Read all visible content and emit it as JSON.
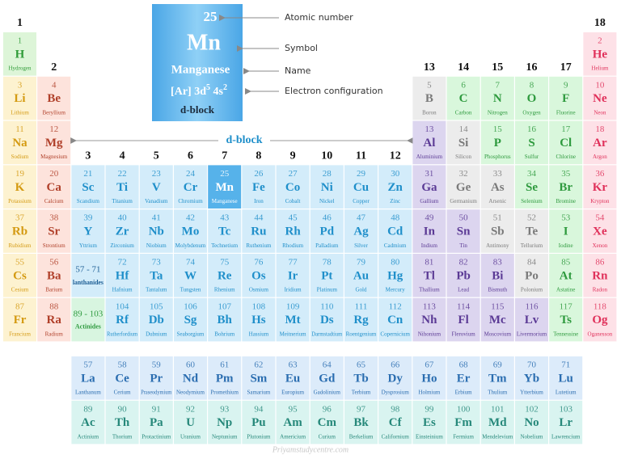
{
  "legend": {
    "number": 25,
    "symbol": "Mn",
    "name": "Manganese",
    "configuration": [
      "[Ar] 3d",
      "5",
      " 4s",
      "2"
    ],
    "block": "d-block",
    "annotations": {
      "number": "Atomic number",
      "symbol": "Symbol",
      "name": "Name",
      "configuration": "Electron configuration"
    }
  },
  "d_block_label": "d-block",
  "groups": [
    1,
    2,
    3,
    4,
    5,
    6,
    7,
    8,
    9,
    10,
    11,
    12,
    13,
    14,
    15,
    16,
    17,
    18
  ],
  "table": {
    "rows": [
      [
        {
          "number": 1,
          "symbol": "H",
          "name": "Hydrogen",
          "fill": "#ddf5d8",
          "color": "#2f9b38"
        },
        null,
        null,
        null,
        null,
        null,
        null,
        null,
        null,
        null,
        null,
        null,
        null,
        null,
        null,
        null,
        null,
        {
          "number": 2,
          "symbol": "He",
          "name": "Helium",
          "fill": "#fde1e7",
          "color": "#e0305a"
        }
      ],
      [
        {
          "number": 3,
          "symbol": "Li",
          "name": "Lithium",
          "fill": "#fdf2d0",
          "color": "#d49a12"
        },
        {
          "number": 4,
          "symbol": "Be",
          "name": "Beryllium",
          "fill": "#fde3dc",
          "color": "#b0402a"
        },
        null,
        null,
        null,
        null,
        null,
        null,
        null,
        null,
        null,
        null,
        {
          "number": 5,
          "symbol": "B",
          "name": "Boron",
          "fill": "#ececec",
          "color": "#7a7a7a"
        },
        {
          "number": 6,
          "symbol": "C",
          "name": "Carbon",
          "fill": "#d9f7dc",
          "color": "#2e9a3e"
        },
        {
          "number": 7,
          "symbol": "N",
          "name": "Nitrogen",
          "fill": "#d9f7dc",
          "color": "#2e9a3e"
        },
        {
          "number": 8,
          "symbol": "O",
          "name": "Oxygen",
          "fill": "#d9f7dc",
          "color": "#2e9a3e"
        },
        {
          "number": 9,
          "symbol": "F",
          "name": "Fluorine",
          "fill": "#d9f7dc",
          "color": "#2e9a3e"
        },
        {
          "number": 10,
          "symbol": "Ne",
          "name": "Neon",
          "fill": "#fde1e7",
          "color": "#e0305a"
        }
      ],
      [
        {
          "number": 11,
          "symbol": "Na",
          "name": "Sodium",
          "fill": "#fdf2d0",
          "color": "#d49a12"
        },
        {
          "number": 12,
          "symbol": "Mg",
          "name": "Magnesium",
          "fill": "#fde3dc",
          "color": "#b0402a"
        },
        null,
        null,
        null,
        null,
        null,
        null,
        null,
        null,
        null,
        null,
        {
          "number": 13,
          "symbol": "Al",
          "name": "Aluminium",
          "fill": "#dcd5ef",
          "color": "#5b3a95"
        },
        {
          "number": 14,
          "symbol": "Si",
          "name": "Silicon",
          "fill": "#ececec",
          "color": "#7a7a7a"
        },
        {
          "number": 15,
          "symbol": "P",
          "name": "Phosphorus",
          "fill": "#d9f7dc",
          "color": "#2e9a3e"
        },
        {
          "number": 16,
          "symbol": "S",
          "name": "Sulfur",
          "fill": "#d9f7dc",
          "color": "#2e9a3e"
        },
        {
          "number": 17,
          "symbol": "Cl",
          "name": "Chlorine",
          "fill": "#d9f7dc",
          "color": "#2e9a3e"
        },
        {
          "number": 18,
          "symbol": "Ar",
          "name": "Argon",
          "fill": "#fde1e7",
          "color": "#e0305a"
        }
      ],
      [
        {
          "number": 19,
          "symbol": "K",
          "name": "Potassium",
          "fill": "#fdf2d0",
          "color": "#d49a12"
        },
        {
          "number": 20,
          "symbol": "Ca",
          "name": "Calcium",
          "fill": "#fde3dc",
          "color": "#b0402a"
        },
        {
          "number": 21,
          "symbol": "Sc",
          "name": "Scandium",
          "fill": "#d3ecfa",
          "color": "#1f8fca"
        },
        {
          "number": 22,
          "symbol": "Ti",
          "name": "Titanium",
          "fill": "#d3ecfa",
          "color": "#1f8fca"
        },
        {
          "number": 23,
          "symbol": "V",
          "name": "Vanadium",
          "fill": "#d3ecfa",
          "color": "#1f8fca"
        },
        {
          "number": 24,
          "symbol": "Cr",
          "name": "Chromium",
          "fill": "#d3ecfa",
          "color": "#1f8fca"
        },
        {
          "number": 25,
          "symbol": "Mn",
          "name": "Manganese",
          "fill": "#56b2ea",
          "color": "#ffffff"
        },
        {
          "number": 26,
          "symbol": "Fe",
          "name": "Iron",
          "fill": "#d3ecfa",
          "color": "#1f8fca"
        },
        {
          "number": 27,
          "symbol": "Co",
          "name": "Cobalt",
          "fill": "#d3ecfa",
          "color": "#1f8fca"
        },
        {
          "number": 28,
          "symbol": "Ni",
          "name": "Nickel",
          "fill": "#d3ecfa",
          "color": "#1f8fca"
        },
        {
          "number": 29,
          "symbol": "Cu",
          "name": "Copper",
          "fill": "#d3ecfa",
          "color": "#1f8fca"
        },
        {
          "number": 30,
          "symbol": "Zn",
          "name": "Zinc",
          "fill": "#d3ecfa",
          "color": "#1f8fca"
        },
        {
          "number": 31,
          "symbol": "Ga",
          "name": "Gallium",
          "fill": "#dcd5ef",
          "color": "#5b3a95"
        },
        {
          "number": 32,
          "symbol": "Ge",
          "name": "Germanium",
          "fill": "#ececec",
          "color": "#7a7a7a"
        },
        {
          "number": 33,
          "symbol": "As",
          "name": "Arsenic",
          "fill": "#ececec",
          "color": "#7a7a7a"
        },
        {
          "number": 34,
          "symbol": "Se",
          "name": "Selenium",
          "fill": "#d9f7dc",
          "color": "#2e9a3e"
        },
        {
          "number": 35,
          "symbol": "Br",
          "name": "Bromine",
          "fill": "#d9f7dc",
          "color": "#2e9a3e"
        },
        {
          "number": 36,
          "symbol": "Kr",
          "name": "Krypton",
          "fill": "#fde1e7",
          "color": "#e0305a"
        }
      ],
      [
        {
          "number": 37,
          "symbol": "Rb",
          "name": "Rubidium",
          "fill": "#fdf2d0",
          "color": "#d49a12"
        },
        {
          "number": 38,
          "symbol": "Sr",
          "name": "Strontium",
          "fill": "#fde3dc",
          "color": "#b0402a"
        },
        {
          "number": 39,
          "symbol": "Y",
          "name": "Yttrium",
          "fill": "#d3ecfa",
          "color": "#1f8fca"
        },
        {
          "number": 40,
          "symbol": "Zr",
          "name": "Zirconium",
          "fill": "#d3ecfa",
          "color": "#1f8fca"
        },
        {
          "number": 41,
          "symbol": "Nb",
          "name": "Niobium",
          "fill": "#d3ecfa",
          "color": "#1f8fca"
        },
        {
          "number": 42,
          "symbol": "Mo",
          "name": "Molybdenum",
          "fill": "#d3ecfa",
          "color": "#1f8fca"
        },
        {
          "number": 43,
          "symbol": "Tc",
          "name": "Technetium",
          "fill": "#d3ecfa",
          "color": "#1f8fca"
        },
        {
          "number": 44,
          "symbol": "Ru",
          "name": "Ruthenium",
          "fill": "#d3ecfa",
          "color": "#1f8fca"
        },
        {
          "number": 45,
          "symbol": "Rh",
          "name": "Rhodium",
          "fill": "#d3ecfa",
          "color": "#1f8fca"
        },
        {
          "number": 46,
          "symbol": "Pd",
          "name": "Palladium",
          "fill": "#d3ecfa",
          "color": "#1f8fca"
        },
        {
          "number": 47,
          "symbol": "Ag",
          "name": "Silver",
          "fill": "#d3ecfa",
          "color": "#1f8fca"
        },
        {
          "number": 48,
          "symbol": "Cd",
          "name": "Cadmium",
          "fill": "#d3ecfa",
          "color": "#1f8fca"
        },
        {
          "number": 49,
          "symbol": "In",
          "name": "Indium",
          "fill": "#dcd5ef",
          "color": "#5b3a95"
        },
        {
          "number": 50,
          "symbol": "Sn",
          "name": "Tin",
          "fill": "#dcd5ef",
          "color": "#5b3a95"
        },
        {
          "number": 51,
          "symbol": "Sb",
          "name": "Antimony",
          "fill": "#ececec",
          "color": "#7a7a7a"
        },
        {
          "number": 52,
          "symbol": "Te",
          "name": "Tellurium",
          "fill": "#ececec",
          "color": "#7a7a7a"
        },
        {
          "number": 53,
          "symbol": "I",
          "name": "Iodine",
          "fill": "#d9f7dc",
          "color": "#2e9a3e"
        },
        {
          "number": 54,
          "symbol": "Xe",
          "name": "Xenon",
          "fill": "#fde1e7",
          "color": "#e0305a"
        }
      ],
      [
        {
          "number": 55,
          "symbol": "Cs",
          "name": "Cesium",
          "fill": "#fdf2d0",
          "color": "#d49a12"
        },
        {
          "number": 56,
          "symbol": "Ba",
          "name": "Barium",
          "fill": "#fde3dc",
          "color": "#b0402a"
        },
        {
          "number": "57 - 71",
          "name": "lanthanides",
          "fill": "#d3ecfa",
          "color": "#1f5f95"
        },
        {
          "number": 72,
          "symbol": "Hf",
          "name": "Hafnium",
          "fill": "#d3ecfa",
          "color": "#1f8fca"
        },
        {
          "number": 73,
          "symbol": "Ta",
          "name": "Tantalum",
          "fill": "#d3ecfa",
          "color": "#1f8fca"
        },
        {
          "number": 74,
          "symbol": "W",
          "name": "Tungsten",
          "fill": "#d3ecfa",
          "color": "#1f8fca"
        },
        {
          "number": 75,
          "symbol": "Re",
          "name": "Rhenium",
          "fill": "#d3ecfa",
          "color": "#1f8fca"
        },
        {
          "number": 76,
          "symbol": "Os",
          "name": "Osmium",
          "fill": "#d3ecfa",
          "color": "#1f8fca"
        },
        {
          "number": 77,
          "symbol": "Ir",
          "name": "Iridium",
          "fill": "#d3ecfa",
          "color": "#1f8fca"
        },
        {
          "number": 78,
          "symbol": "Pt",
          "name": "Platinum",
          "fill": "#d3ecfa",
          "color": "#1f8fca"
        },
        {
          "number": 79,
          "symbol": "Au",
          "name": "Gold",
          "fill": "#d3ecfa",
          "color": "#1f8fca"
        },
        {
          "number": 80,
          "symbol": "Hg",
          "name": "Mercury",
          "fill": "#d3ecfa",
          "color": "#1f8fca"
        },
        {
          "number": 81,
          "symbol": "Tl",
          "name": "Thallium",
          "fill": "#dcd5ef",
          "color": "#5b3a95"
        },
        {
          "number": 82,
          "symbol": "Pb",
          "name": "Lead",
          "fill": "#dcd5ef",
          "color": "#5b3a95"
        },
        {
          "number": 83,
          "symbol": "Bi",
          "name": "Bismuth",
          "fill": "#dcd5ef",
          "color": "#5b3a95"
        },
        {
          "number": 84,
          "symbol": "Po",
          "name": "Polonium",
          "fill": "#ececec",
          "color": "#7a7a7a"
        },
        {
          "number": 85,
          "symbol": "At",
          "name": "Astatine",
          "fill": "#d9f7dc",
          "color": "#2e9a3e"
        },
        {
          "number": 86,
          "symbol": "Rn",
          "name": "Radon",
          "fill": "#fde1e7",
          "color": "#e0305a"
        }
      ],
      [
        {
          "number": 87,
          "symbol": "Fr",
          "name": "Francium",
          "fill": "#fdf2d0",
          "color": "#d49a12"
        },
        {
          "number": 88,
          "symbol": "Ra",
          "name": "Radium",
          "fill": "#fde3dc",
          "color": "#b0402a"
        },
        {
          "number": "89 - 103",
          "name": "Actinides",
          "fill": "#d8f5e0",
          "color": "#2e9a3e"
        },
        {
          "number": 104,
          "symbol": "Rf",
          "name": "Rutherfordium",
          "fill": "#d3ecfa",
          "color": "#1f8fca"
        },
        {
          "number": 105,
          "symbol": "Db",
          "name": "Dubnium",
          "fill": "#d3ecfa",
          "color": "#1f8fca"
        },
        {
          "number": 106,
          "symbol": "Sg",
          "name": "Seaborgium",
          "fill": "#d3ecfa",
          "color": "#1f8fca"
        },
        {
          "number": 107,
          "symbol": "Bh",
          "name": "Bohrium",
          "fill": "#d3ecfa",
          "color": "#1f8fca"
        },
        {
          "number": 108,
          "symbol": "Hs",
          "name": "Hassium",
          "fill": "#d3ecfa",
          "color": "#1f8fca"
        },
        {
          "number": 109,
          "symbol": "Mt",
          "name": "Meitnerium",
          "fill": "#d3ecfa",
          "color": "#1f8fca"
        },
        {
          "number": 110,
          "symbol": "Ds",
          "name": "Darmstadtium",
          "fill": "#d3ecfa",
          "color": "#1f8fca"
        },
        {
          "number": 111,
          "symbol": "Rg",
          "name": "Roentgenium",
          "fill": "#d3ecfa",
          "color": "#1f8fca"
        },
        {
          "number": 112,
          "symbol": "Cn",
          "name": "Copernicium",
          "fill": "#d3ecfa",
          "color": "#1f8fca"
        },
        {
          "number": 113,
          "symbol": "Nh",
          "name": "Nihonium",
          "fill": "#dcd5ef",
          "color": "#5b3a95"
        },
        {
          "number": 114,
          "symbol": "Fl",
          "name": "Flerovium",
          "fill": "#dcd5ef",
          "color": "#5b3a95"
        },
        {
          "number": 115,
          "symbol": "Mc",
          "name": "Moscovium",
          "fill": "#dcd5ef",
          "color": "#5b3a95"
        },
        {
          "number": 116,
          "symbol": "Lv",
          "name": "Livermorium",
          "fill": "#dcd5ef",
          "color": "#5b3a95"
        },
        {
          "number": 117,
          "symbol": "Ts",
          "name": "Tennessine",
          "fill": "#d9f7dc",
          "color": "#2e9a3e"
        },
        {
          "number": 118,
          "symbol": "Og",
          "name": "Oganesson",
          "fill": "#fde1e7",
          "color": "#e0305a"
        }
      ]
    ]
  },
  "f_block": {
    "rows": [
      [
        {
          "number": 57,
          "symbol": "La",
          "name": "Lanthanum"
        },
        {
          "number": 58,
          "symbol": "Ce",
          "name": "Cerium"
        },
        {
          "number": 59,
          "symbol": "Pr",
          "name": "Praseodymium"
        },
        {
          "number": 60,
          "symbol": "Nd",
          "name": "Neodymium"
        },
        {
          "number": 61,
          "symbol": "Pm",
          "name": "Promethium"
        },
        {
          "number": 62,
          "symbol": "Sm",
          "name": "Samarium"
        },
        {
          "number": 63,
          "symbol": "Eu",
          "name": "Europium"
        },
        {
          "number": 64,
          "symbol": "Gd",
          "name": "Gadolinium"
        },
        {
          "number": 65,
          "symbol": "Tb",
          "name": "Terbium"
        },
        {
          "number": 66,
          "symbol": "Dy",
          "name": "Dysprosium"
        },
        {
          "number": 67,
          "symbol": "Ho",
          "name": "Holmium"
        },
        {
          "number": 68,
          "symbol": "Er",
          "name": "Erbium"
        },
        {
          "number": 69,
          "symbol": "Tm",
          "name": "Thulium"
        },
        {
          "number": 70,
          "symbol": "Yb",
          "name": "Ytterbium"
        },
        {
          "number": 71,
          "symbol": "Lu",
          "name": "Lutetium"
        }
      ],
      [
        {
          "number": 89,
          "symbol": "Ac",
          "name": "Actinium"
        },
        {
          "number": 90,
          "symbol": "Th",
          "name": "Thorium"
        },
        {
          "number": 91,
          "symbol": "Pa",
          "name": "Protactinium"
        },
        {
          "number": 92,
          "symbol": "U",
          "name": "Uranium"
        },
        {
          "number": 93,
          "symbol": "Np",
          "name": "Neptunium"
        },
        {
          "number": 94,
          "symbol": "Pu",
          "name": "Plutonium"
        },
        {
          "number": 95,
          "symbol": "Am",
          "name": "Americium"
        },
        {
          "number": 96,
          "symbol": "Cm",
          "name": "Curium"
        },
        {
          "number": 97,
          "symbol": "Bk",
          "name": "Berkelium"
        },
        {
          "number": 98,
          "symbol": "Cf",
          "name": "Californium"
        },
        {
          "number": 99,
          "symbol": "Es",
          "name": "Einsteinium"
        },
        {
          "number": 100,
          "symbol": "Fm",
          "name": "Fermium"
        },
        {
          "number": 101,
          "symbol": "Md",
          "name": "Mendelevium"
        },
        {
          "number": 102,
          "symbol": "No",
          "name": "Nobelium"
        },
        {
          "number": 103,
          "symbol": "Lr",
          "name": "Lawrencium"
        }
      ]
    ],
    "colors": [
      {
        "fill": "#dcebfa",
        "color": "#2a6db0"
      },
      {
        "fill": "#d9f4f0",
        "color": "#26887a"
      }
    ]
  },
  "watermark": "Priyamstudycentre.com"
}
